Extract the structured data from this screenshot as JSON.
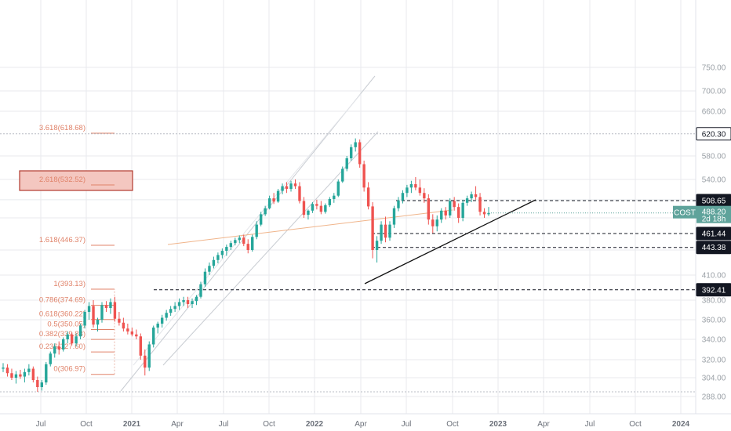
{
  "symbol": "COST",
  "price_tag": {
    "symbol": "COST",
    "price": "488.20",
    "countdown": "2d 18h"
  },
  "colors": {
    "up": "#26a69a",
    "down": "#ef5350",
    "grid": "#e8eaed",
    "fib": "#e0836a",
    "channel": "#c8ccd2",
    "trend": "#111111",
    "tag_dark": "#131722",
    "tag_green": "#5fa39b"
  },
  "chart_data": {
    "type": "candlestick",
    "y_ticks": [
      288,
      304,
      320,
      340,
      360,
      380,
      410,
      440,
      480,
      510,
      540,
      580,
      660,
      700,
      750
    ],
    "y_tick_labels": [
      "288.00",
      "304.00",
      "320.00",
      "340.00",
      "360.00",
      "380.00",
      "410.00",
      "440.00",
      "480.00",
      "510.00",
      "540.00",
      "580.00",
      "660.00",
      "700.00",
      "750.00"
    ],
    "x_labels": [
      "Jul",
      "Oct",
      "2021",
      "Apr",
      "Jul",
      "Oct",
      "2022",
      "Apr",
      "Jul",
      "Oct",
      "2023",
      "Apr",
      "Jul",
      "Oct",
      "2024"
    ],
    "x_label_bold": [
      false,
      false,
      true,
      false,
      false,
      false,
      true,
      false,
      false,
      false,
      true,
      false,
      false,
      false,
      true
    ],
    "x_label_dates": [
      "2020-07",
      "2020-10",
      "2021-01",
      "2021-04",
      "2021-07",
      "2021-10",
      "2022-01",
      "2022-04",
      "2022-07",
      "2022-10",
      "2023-01",
      "2023-04",
      "2023-07",
      "2023-10",
      "2024-01"
    ],
    "price_levels": [
      {
        "value": 620.3,
        "label": "620.30",
        "style": "dotted",
        "tag": "light"
      },
      {
        "value": 508.65,
        "label": "508.65",
        "style": "dashed",
        "tag": "dark"
      },
      {
        "value": 461.44,
        "label": "461.44",
        "style": "dashed",
        "tag": "dark"
      },
      {
        "value": 443.38,
        "label": "443.38",
        "style": "dashed",
        "tag": "dark"
      },
      {
        "value": 392.41,
        "label": "392.41",
        "style": "dashed",
        "tag": "dark"
      },
      {
        "value": 292.0,
        "label": "",
        "style": "dotted",
        "tag": "none"
      }
    ],
    "fib_levels": [
      {
        "label": "3.618(618.68)",
        "value": 618.68
      },
      {
        "label": "2.618(532.52)",
        "value": 532.52,
        "highlight": true
      },
      {
        "label": "1.618(446.37)",
        "value": 446.37
      },
      {
        "label": "1(393.13)",
        "value": 393.13
      },
      {
        "label": "0.786(374.69)",
        "value": 374.69
      },
      {
        "label": "0.618(360.22)",
        "value": 360.22
      },
      {
        "label": "0.5(350.05)",
        "value": 350.05
      },
      {
        "label": "0.382(339.88)",
        "value": 339.88
      },
      {
        "label": "0.236(327.60)",
        "value": 327.6
      },
      {
        "label": "0(306.97)",
        "value": 306.97
      }
    ],
    "candles": [
      [
        312,
        317,
        309,
        313
      ],
      [
        313,
        316,
        305,
        308
      ],
      [
        308,
        312,
        302,
        304
      ],
      [
        304,
        310,
        299,
        307
      ],
      [
        307,
        311,
        303,
        305
      ],
      [
        305,
        312,
        300,
        309
      ],
      [
        309,
        316,
        306,
        312
      ],
      [
        312,
        314,
        300,
        302
      ],
      [
        302,
        305,
        292,
        296
      ],
      [
        296,
        302,
        293,
        300
      ],
      [
        300,
        318,
        298,
        316
      ],
      [
        316,
        328,
        314,
        326
      ],
      [
        326,
        336,
        322,
        333
      ],
      [
        333,
        338,
        325,
        330
      ],
      [
        330,
        342,
        328,
        340
      ],
      [
        340,
        348,
        336,
        345
      ],
      [
        345,
        347,
        334,
        336
      ],
      [
        336,
        346,
        333,
        343
      ],
      [
        343,
        356,
        340,
        354
      ],
      [
        354,
        370,
        351,
        368
      ],
      [
        368,
        378,
        360,
        374
      ],
      [
        374,
        380,
        352,
        355
      ],
      [
        355,
        362,
        348,
        360
      ],
      [
        360,
        378,
        357,
        375
      ],
      [
        375,
        379,
        368,
        372
      ],
      [
        372,
        382,
        366,
        378
      ],
      [
        378,
        384,
        358,
        361
      ],
      [
        361,
        368,
        354,
        357
      ],
      [
        357,
        362,
        348,
        351
      ],
      [
        351,
        356,
        345,
        348
      ],
      [
        348,
        352,
        343,
        345
      ],
      [
        345,
        350,
        340,
        343
      ],
      [
        343,
        346,
        320,
        324
      ],
      [
        324,
        330,
        306,
        313
      ],
      [
        313,
        338,
        310,
        335
      ],
      [
        335,
        354,
        332,
        352
      ],
      [
        352,
        358,
        346,
        356
      ],
      [
        356,
        365,
        352,
        362
      ],
      [
        362,
        370,
        359,
        367
      ],
      [
        367,
        374,
        364,
        371
      ],
      [
        371,
        378,
        368,
        374
      ],
      [
        374,
        382,
        370,
        378
      ],
      [
        378,
        384,
        374,
        380
      ],
      [
        380,
        384,
        372,
        376
      ],
      [
        376,
        382,
        372,
        379
      ],
      [
        379,
        386,
        375,
        384
      ],
      [
        384,
        402,
        382,
        399
      ],
      [
        399,
        418,
        396,
        414
      ],
      [
        414,
        425,
        410,
        421
      ],
      [
        421,
        432,
        418,
        428
      ],
      [
        428,
        437,
        424,
        434
      ],
      [
        434,
        442,
        430,
        439
      ],
      [
        439,
        447,
        433,
        444
      ],
      [
        444,
        452,
        440,
        449
      ],
      [
        449,
        456,
        446,
        453
      ],
      [
        453,
        459,
        449,
        456
      ],
      [
        456,
        460,
        445,
        448
      ],
      [
        448,
        454,
        436,
        440
      ],
      [
        440,
        460,
        438,
        457
      ],
      [
        457,
        476,
        454,
        472
      ],
      [
        472,
        490,
        470,
        486
      ],
      [
        486,
        500,
        483,
        496
      ],
      [
        496,
        516,
        494,
        512
      ],
      [
        512,
        520,
        503,
        507
      ],
      [
        507,
        526,
        505,
        523
      ],
      [
        523,
        534,
        518,
        530
      ],
      [
        530,
        536,
        520,
        526
      ],
      [
        526,
        538,
        522,
        534
      ],
      [
        534,
        540,
        526,
        530
      ],
      [
        530,
        536,
        504,
        508
      ],
      [
        508,
        514,
        480,
        485
      ],
      [
        485,
        494,
        478,
        492
      ],
      [
        492,
        506,
        488,
        503
      ],
      [
        503,
        510,
        494,
        500
      ],
      [
        500,
        508,
        486,
        490
      ],
      [
        490,
        504,
        487,
        501
      ],
      [
        501,
        514,
        498,
        511
      ],
      [
        511,
        520,
        505,
        516
      ],
      [
        516,
        540,
        514,
        537
      ],
      [
        537,
        562,
        535,
        558
      ],
      [
        558,
        580,
        554,
        576
      ],
      [
        576,
        601,
        572,
        596
      ],
      [
        596,
        612,
        588,
        605
      ],
      [
        605,
        610,
        560,
        566
      ],
      [
        566,
        572,
        522,
        528
      ],
      [
        528,
        536,
        494,
        499
      ],
      [
        499,
        506,
        430,
        440
      ],
      [
        440,
        458,
        425,
        452
      ],
      [
        452,
        476,
        448,
        472
      ],
      [
        472,
        482,
        450,
        456
      ],
      [
        456,
        476,
        452,
        472
      ],
      [
        472,
        500,
        468,
        496
      ],
      [
        496,
        514,
        491,
        509
      ],
      [
        509,
        524,
        504,
        520
      ],
      [
        520,
        532,
        514,
        528
      ],
      [
        528,
        538,
        520,
        533
      ],
      [
        533,
        544,
        524,
        528
      ],
      [
        528,
        540,
        516,
        520
      ],
      [
        520,
        527,
        505,
        512
      ],
      [
        512,
        518,
        472,
        478
      ],
      [
        478,
        486,
        462,
        470
      ],
      [
        470,
        484,
        464,
        478
      ],
      [
        478,
        496,
        474,
        492
      ],
      [
        492,
        498,
        478,
        484
      ],
      [
        484,
        512,
        480,
        508
      ],
      [
        508,
        514,
        492,
        498
      ],
      [
        498,
        504,
        474,
        480
      ],
      [
        480,
        510,
        476,
        505
      ],
      [
        505,
        516,
        500,
        512
      ],
      [
        512,
        522,
        506,
        518
      ],
      [
        518,
        530,
        510,
        514
      ],
      [
        514,
        520,
        484,
        490
      ],
      [
        490,
        496,
        480,
        486
      ],
      [
        486,
        498,
        483,
        488
      ]
    ]
  }
}
